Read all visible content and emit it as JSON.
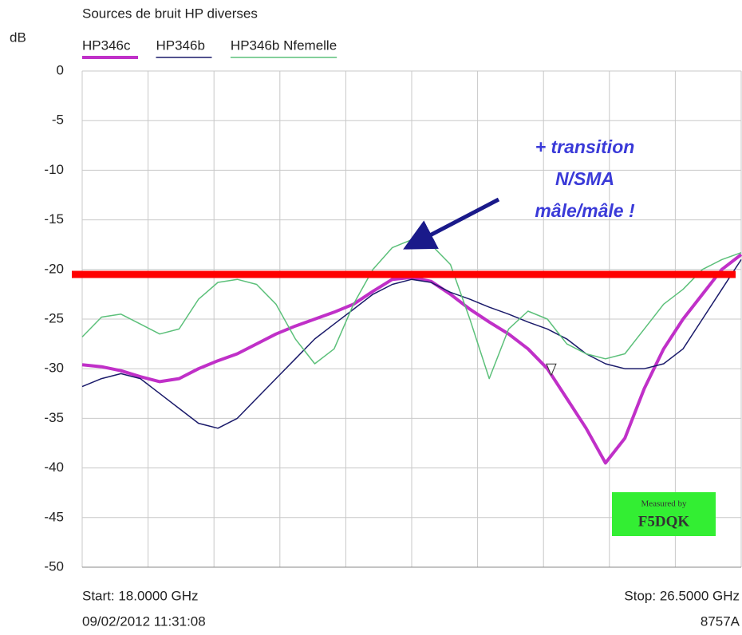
{
  "chart_data": {
    "type": "line",
    "title": "Sources de bruit HP diverses",
    "ylabel": "dB",
    "x": [
      18,
      18.25,
      18.5,
      18.75,
      19,
      19.25,
      19.5,
      19.75,
      20,
      20.25,
      20.5,
      20.75,
      21,
      21.25,
      21.5,
      21.75,
      22,
      22.25,
      22.5,
      22.75,
      23,
      23.25,
      23.5,
      23.75,
      24,
      24.25,
      24.5,
      24.75,
      25,
      25.25,
      25.5,
      25.75,
      26,
      26.25,
      26.5
    ],
    "series": [
      {
        "name": "HP346c",
        "color": "#c030c8",
        "width": 4,
        "values": [
          -29.6,
          -29.8,
          -30.2,
          -30.8,
          -31.3,
          -31,
          -30,
          -29.2,
          -28.5,
          -27.5,
          -26.5,
          -25.7,
          -25,
          -24.3,
          -23.5,
          -22.2,
          -21,
          -20.8,
          -21.2,
          -22.5,
          -24,
          -25.3,
          -26.5,
          -28,
          -30,
          -33,
          -36,
          -39.5,
          -37,
          -32,
          -28,
          -25,
          -22.5,
          -20,
          -18.5
        ]
      },
      {
        "name": "HP346b",
        "color": "#1a1a6a",
        "width": 1.5,
        "values": [
          -31.8,
          -31,
          -30.5,
          -31,
          -32.5,
          -34,
          -35.5,
          -36,
          -35,
          -33,
          -31,
          -29,
          -27,
          -25.5,
          -24,
          -22.5,
          -21.5,
          -21,
          -21.3,
          -22.3,
          -23,
          -23.8,
          -24.5,
          -25.3,
          -26,
          -27,
          -28.5,
          -29.5,
          -30,
          -30,
          -29.5,
          -28,
          -25,
          -22,
          -19
        ]
      },
      {
        "name": "HP346b Nfemelle",
        "color": "#5cc07a",
        "width": 1.5,
        "values": [
          -26.8,
          -24.8,
          -24.5,
          -25.5,
          -26.5,
          -26,
          -23,
          -21.3,
          -21,
          -21.5,
          -23.5,
          -27,
          -29.5,
          -28,
          -23.5,
          -20,
          -17.8,
          -17,
          -17.5,
          -19.5,
          -25,
          -31,
          -26,
          -24.2,
          -25,
          -27.5,
          -28.5,
          -29,
          -28.5,
          -26,
          -23.5,
          -22,
          -20,
          -19,
          -18.3
        ]
      }
    ],
    "xlim": [
      18,
      26.5
    ],
    "xticks": [
      18,
      18.85,
      19.7,
      20.55,
      21.4,
      22.25,
      23.1,
      23.95,
      24.8,
      25.65,
      26.5
    ],
    "ylim": [
      -50,
      0
    ],
    "yticks": [
      0,
      -5,
      -10,
      -15,
      -20,
      -25,
      -30,
      -35,
      -40,
      -45,
      -50
    ],
    "grid": true,
    "reference_line": {
      "value": -20.5,
      "color": "#ff0000"
    },
    "marker": {
      "x": 24.05,
      "y": -30
    },
    "annotation": [
      "+ transition",
      "N/SMA",
      "mâle/mâle !"
    ],
    "stamp": [
      "Measured by",
      "F5DQK"
    ],
    "start_label": "Start: 18.0000 GHz",
    "stop_label": "Stop: 26.5000 GHz",
    "timestamp": "09/02/2012 11:31:08",
    "instrument": "8757A"
  }
}
